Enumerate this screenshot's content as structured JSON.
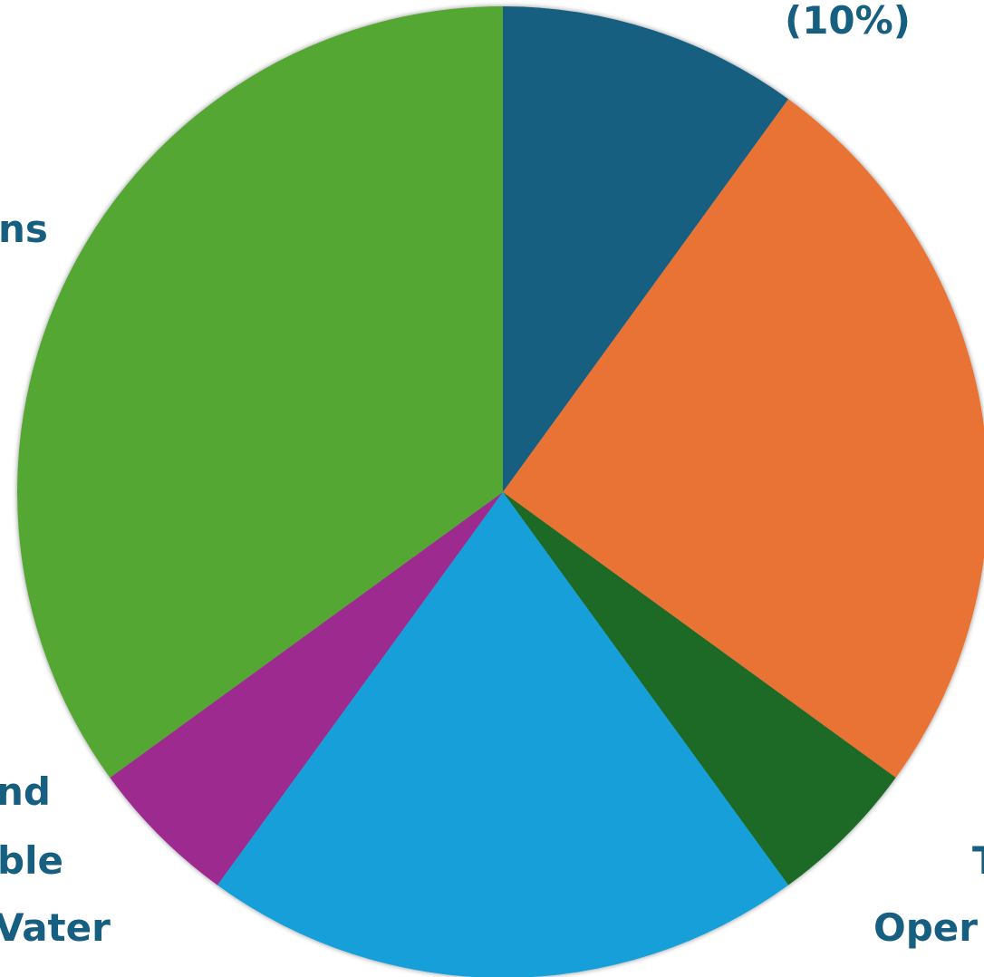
{
  "chart_data": {
    "type": "pie",
    "start_angle": "12 o'clock",
    "direction": "clockwise",
    "slices": [
      {
        "value": 10,
        "color": "#175f80"
      },
      {
        "value": 25,
        "color": "#e97334"
      },
      {
        "value": 5,
        "color": "#1e6b25"
      },
      {
        "value": 20,
        "color": "#139fd8"
      },
      {
        "value": 5,
        "color": "#9c2b8f"
      },
      {
        "value": 35,
        "color": "#52a732"
      }
    ],
    "label_fragments": [
      {
        "text": "(10%)"
      },
      {
        "text": "ns"
      },
      {
        "text": "nd"
      },
      {
        "text": "ble"
      },
      {
        "text": "Vater"
      },
      {
        "text": "T"
      },
      {
        "text": "Oper"
      }
    ]
  }
}
